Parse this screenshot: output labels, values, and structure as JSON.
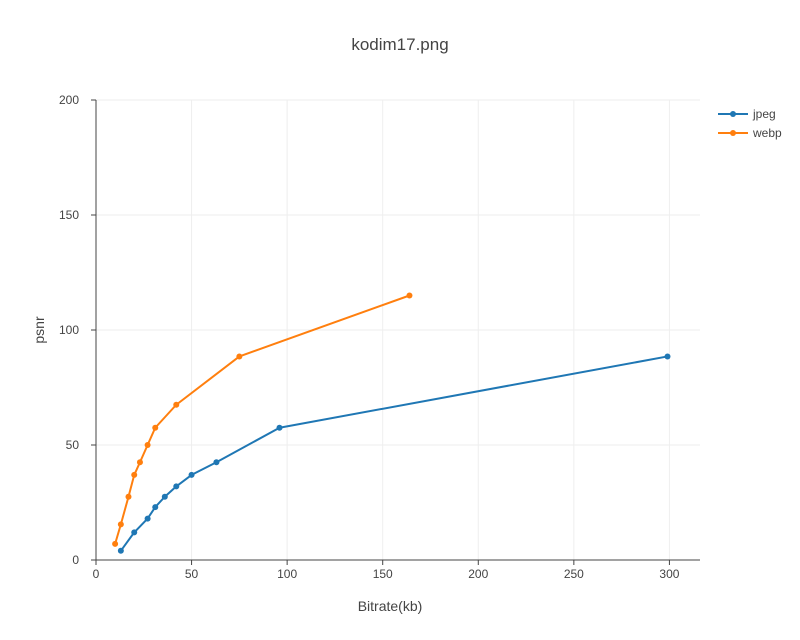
{
  "chart_data": {
    "type": "line",
    "title": "kodim17.png",
    "xlabel": "Bitrate(kb)",
    "ylabel": "psnr",
    "xlim": [
      0,
      316
    ],
    "ylim": [
      0,
      200
    ],
    "xticks": [
      0,
      50,
      100,
      150,
      200,
      250,
      300
    ],
    "yticks": [
      0,
      50,
      100,
      150,
      200
    ],
    "grid": true,
    "legend_position": "top-right",
    "series": [
      {
        "name": "jpeg",
        "color": "#1f77b4",
        "x": [
          13,
          20,
          27,
          31,
          36,
          42,
          50,
          63,
          96,
          299
        ],
        "y": [
          4,
          12,
          18,
          23,
          27.5,
          32,
          37,
          42.5,
          57.5,
          88.5
        ]
      },
      {
        "name": "webp",
        "color": "#ff7f0e",
        "x": [
          10,
          13,
          17,
          20,
          23,
          27,
          31,
          42,
          75,
          164
        ],
        "y": [
          7,
          15.5,
          27.5,
          37,
          42.5,
          50,
          57.5,
          67.5,
          88.5,
          115
        ]
      }
    ]
  }
}
